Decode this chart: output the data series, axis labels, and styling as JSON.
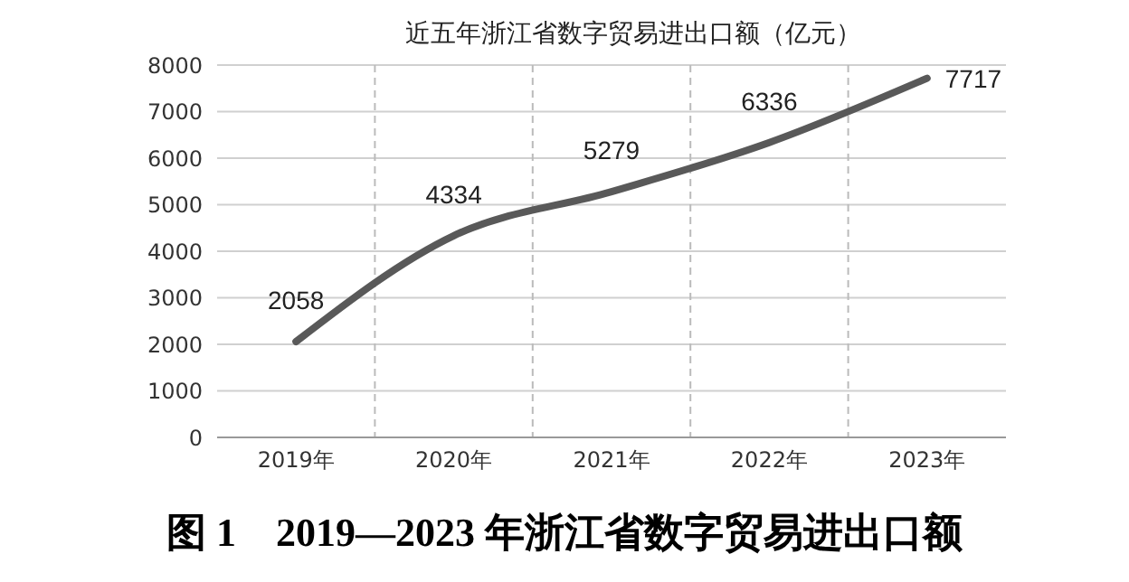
{
  "chart_data": {
    "type": "line",
    "title": "近五年浙江省数字贸易进出口额（亿元）",
    "categories": [
      "2019年",
      "2020年",
      "2021年",
      "2022年",
      "2023年"
    ],
    "series": [
      {
        "color": "#595959",
        "values": [
          2058,
          4334,
          5279,
          6336,
          7717
        ]
      }
    ],
    "ylim": [
      0,
      8000
    ],
    "yticks": [
      0,
      1000,
      2000,
      3000,
      4000,
      5000,
      6000,
      7000,
      8000
    ],
    "grid": true,
    "data_labels": true,
    "marker": "none",
    "line_style": "solid",
    "annotations": [
      "图 1　2019—2023 年浙江省数字贸易进出口额"
    ]
  }
}
